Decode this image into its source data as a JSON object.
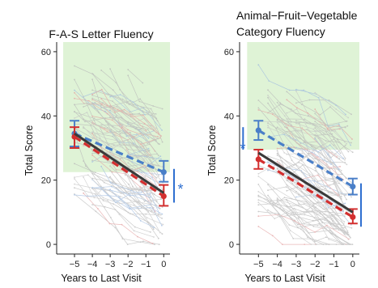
{
  "chart_data": [
    {
      "type": "line",
      "title": "F-A-S Letter Fluency",
      "xlabel": "Years to Last Visit",
      "ylabel": "Total Score",
      "xlim": [
        -6.0,
        0.35
      ],
      "ylim": [
        -2,
        63
      ],
      "x_ticks": [
        -5,
        -4,
        -3,
        -2,
        -1,
        0
      ],
      "y_ticks": [
        0,
        20,
        40,
        60
      ],
      "shaded_y_range": [
        22.5,
        63
      ],
      "shaded_color": "#dff3d6",
      "significance_marker": "*",
      "series": [
        {
          "color": "#4a7fc8",
          "x": [
            -5,
            0
          ],
          "y": [
            34.5,
            22.5
          ],
          "err_low": [
            30.5,
            19.5
          ],
          "err_high": [
            38.5,
            26.0
          ]
        },
        {
          "color": "#d32f2f",
          "x": [
            -5,
            0
          ],
          "y": [
            33.5,
            15.0
          ],
          "err_low": [
            30.0,
            12.0
          ],
          "err_high": [
            36.5,
            18.5
          ]
        },
        {
          "color": "#3a3a3a",
          "x": [
            -5,
            0
          ],
          "y": [
            34.5,
            16.0
          ]
        }
      ]
    },
    {
      "type": "line",
      "title": "Animal−Fruit−Vegetable\nCategory Fluency",
      "xlabel": "Years to Last Visit",
      "ylabel": "Total Score",
      "xlim": [
        -6.0,
        0.35
      ],
      "ylim": [
        -2,
        63
      ],
      "x_ticks": [
        -5,
        -4,
        -3,
        -2,
        -1,
        0
      ],
      "y_ticks": [
        0,
        20,
        40,
        60
      ],
      "shaded_y_range": [
        29.5,
        63
      ],
      "shaded_color": "#dff3d6",
      "significance_marker": "*",
      "series": [
        {
          "color": "#4a7fc8",
          "x": [
            -5,
            0
          ],
          "y": [
            35.5,
            18.0
          ],
          "err_low": [
            32.5,
            15.5
          ],
          "err_high": [
            38.5,
            20.5
          ]
        },
        {
          "color": "#d32f2f",
          "x": [
            -5,
            0
          ],
          "y": [
            26.5,
            8.5
          ],
          "err_low": [
            23.5,
            6.5
          ],
          "err_high": [
            29.5,
            11.0
          ]
        },
        {
          "color": "#3a3a3a",
          "x": [
            -5,
            0
          ],
          "y": [
            28.5,
            10.0
          ]
        }
      ]
    }
  ]
}
